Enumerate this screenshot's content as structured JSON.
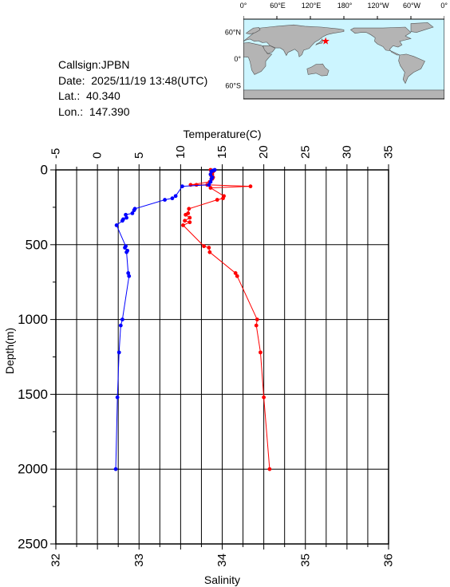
{
  "info": {
    "callsign": "Callsign:JPBN",
    "date": "Date:  2025/11/19 13:48(UTC)",
    "lat": "Lat.:  40.340",
    "lon": "Lon.:  147.390"
  },
  "map": {
    "lon_labels": [
      "0°",
      "60°E",
      "120°E",
      "180°",
      "120°W",
      "60°W",
      "0°"
    ],
    "lat_labels": [
      "60°N",
      "0°",
      "60°S"
    ],
    "ocean_color": "#ccf5ff",
    "land_color": "#b4b4b4",
    "marker": {
      "lon": 147.39,
      "lat": 40.34,
      "color": "#ff0000",
      "symbol": "star"
    }
  },
  "chart_data": {
    "type": "line",
    "x_top_label": "Temperature(C)",
    "x_bottom_label": "Salinity",
    "ylabel": "Depth(m)",
    "temp_range": [
      -5,
      35
    ],
    "sal_range": [
      32,
      36
    ],
    "depth_range": [
      0,
      2500
    ],
    "temp_ticks": [
      "-5",
      "0",
      "5",
      "10",
      "15",
      "20",
      "25",
      "30",
      "35"
    ],
    "sal_ticks": [
      "32",
      "33",
      "34",
      "35",
      "36"
    ],
    "depth_ticks": [
      "0",
      "500",
      "1000",
      "1500",
      "2000",
      "2500"
    ],
    "grid": true,
    "series": [
      {
        "axis": "temperature",
        "color": "#ff0000",
        "depth": [
          0,
          5,
          10,
          20,
          30,
          40,
          50,
          60,
          80,
          100,
          100,
          100,
          110,
          120,
          175,
          190,
          200,
          260,
          290,
          300,
          320,
          340,
          350,
          370,
          510,
          520,
          550,
          690,
          710,
          1000,
          1040,
          1220,
          1520,
          2000
        ],
        "values": [
          13.6,
          14.0,
          13.9,
          13.7,
          13.8,
          13.7,
          13.9,
          13.8,
          13.5,
          11.2,
          11.9,
          13.2,
          18.4,
          13.6,
          15.2,
          15.1,
          14.4,
          11.0,
          10.9,
          10.6,
          11.1,
          10.5,
          11.1,
          10.3,
          12.8,
          13.4,
          13.5,
          16.6,
          16.8,
          19.2,
          19.1,
          19.6,
          20.0,
          20.7
        ]
      },
      {
        "axis": "salinity",
        "color": "#0000ff",
        "depth": [
          0,
          5,
          10,
          30,
          50,
          60,
          80,
          100,
          110,
          175,
          190,
          200,
          260,
          270,
          290,
          300,
          320,
          330,
          340,
          370,
          510,
          520,
          540,
          550,
          690,
          710,
          1000,
          1040,
          1220,
          1520,
          2000
        ],
        "values": [
          33.91,
          33.89,
          33.87,
          33.86,
          33.88,
          33.87,
          33.86,
          33.84,
          33.52,
          33.44,
          33.4,
          33.31,
          32.95,
          32.94,
          32.92,
          32.84,
          32.85,
          32.81,
          32.8,
          32.73,
          32.84,
          32.83,
          32.86,
          32.85,
          32.87,
          32.88,
          32.8,
          32.78,
          32.76,
          32.74,
          32.72
        ]
      }
    ]
  }
}
